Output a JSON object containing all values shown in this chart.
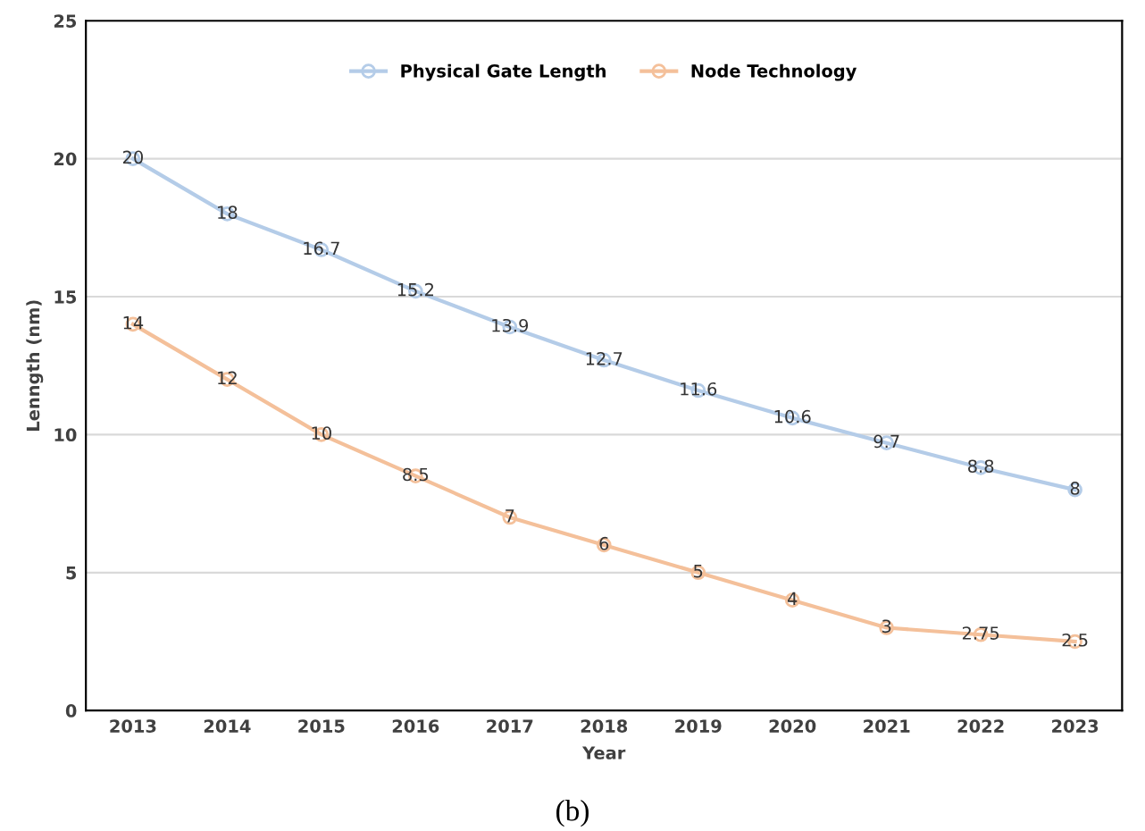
{
  "chart_data": {
    "type": "line",
    "xlabel": "Year",
    "ylabel": "Lenngth (nm)",
    "categories": [
      "2013",
      "2014",
      "2015",
      "2016",
      "2017",
      "2018",
      "2019",
      "2020",
      "2021",
      "2022",
      "2023"
    ],
    "series": [
      {
        "name": "Physical Gate Length",
        "color": "#b4cce8",
        "values": [
          20,
          18,
          16.7,
          15.2,
          13.9,
          12.7,
          11.6,
          10.6,
          9.7,
          8.8,
          8
        ]
      },
      {
        "name": "Node Technology",
        "color": "#f4c09a",
        "values": [
          14,
          12,
          10,
          8.5,
          7,
          6,
          5,
          4,
          3,
          2.75,
          2.5
        ]
      }
    ],
    "ylim": [
      0,
      25
    ],
    "yticks": [
      0,
      5,
      10,
      15,
      20,
      25
    ],
    "grid": "y",
    "legend": "top",
    "marker": "circle",
    "line_style": "solid",
    "data_labels": true,
    "annotations": [
      "(b)"
    ]
  }
}
